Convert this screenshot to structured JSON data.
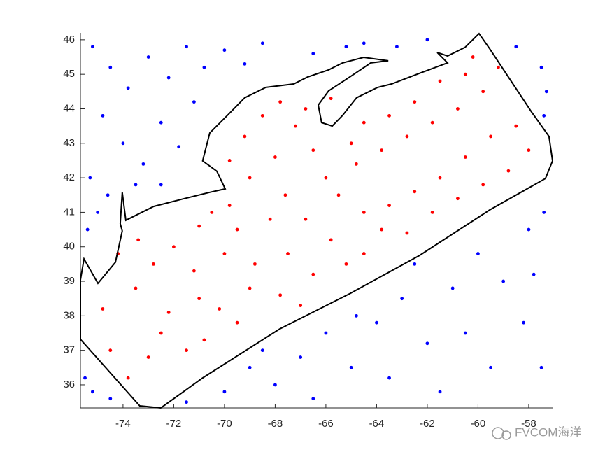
{
  "chart_data": {
    "type": "scatter",
    "xlim": [
      -75.68,
      -57.06
    ],
    "ylim": [
      35.33,
      46.2
    ],
    "xticks": [
      -74,
      -72,
      -70,
      -68,
      -66,
      -64,
      -62,
      -60,
      -58
    ],
    "yticks": [
      36,
      37,
      38,
      39,
      40,
      41,
      42,
      43,
      44,
      45,
      46
    ],
    "series": [
      {
        "color": "#ff0000",
        "x": [
          -74.5,
          -73.8,
          -73.0,
          -72.5,
          -74.8,
          -73.5,
          -72.2,
          -71.5,
          -70.8,
          -71.0,
          -72.8,
          -74.2,
          -73.4,
          -72.0,
          -71.2,
          -70.2,
          -69.5,
          -69.0,
          -70.0,
          -71.0,
          -69.5,
          -68.8,
          -67.8,
          -67.0,
          -66.5,
          -67.5,
          -68.2,
          -69.8,
          -70.5,
          -69.0,
          -69.8,
          -69.2,
          -68.5,
          -67.8,
          -67.2,
          -66.5,
          -68.0,
          -67.6,
          -66.8,
          -65.8,
          -65.2,
          -64.5,
          -63.8,
          -62.8,
          -61.8,
          -60.8,
          -59.8,
          -58.8,
          -58.0,
          -58.5,
          -59.5,
          -60.5,
          -61.5,
          -62.5,
          -63.5,
          -64.5,
          -65.5,
          -66.0,
          -64.8,
          -63.8,
          -62.8,
          -61.8,
          -60.8,
          -59.8,
          -59.2,
          -60.5,
          -61.5,
          -62.5,
          -63.5,
          -64.5,
          -65.0,
          -66.8,
          -65.8,
          -60.2
        ],
        "y": [
          37.0,
          36.2,
          36.8,
          37.5,
          38.2,
          38.8,
          38.1,
          37.0,
          37.3,
          38.5,
          39.5,
          39.8,
          40.2,
          40.0,
          39.3,
          38.2,
          37.8,
          38.8,
          39.8,
          40.6,
          40.5,
          39.5,
          38.6,
          38.3,
          39.2,
          39.8,
          40.8,
          41.2,
          41.0,
          42.0,
          42.5,
          43.2,
          43.8,
          44.2,
          43.5,
          42.8,
          42.6,
          41.5,
          40.8,
          40.2,
          39.5,
          39.8,
          40.5,
          40.4,
          41.0,
          41.4,
          41.8,
          42.2,
          42.8,
          43.5,
          43.2,
          42.6,
          42.0,
          41.6,
          41.2,
          41.0,
          41.5,
          42.0,
          42.4,
          42.8,
          43.2,
          43.6,
          44.0,
          44.5,
          45.2,
          45.0,
          44.8,
          44.2,
          43.8,
          43.6,
          43.0,
          44.0,
          44.3,
          45.5
        ]
      },
      {
        "color": "#0000ff",
        "x": [
          -75.2,
          -74.5,
          -73.8,
          -73.0,
          -72.2,
          -71.5,
          -70.8,
          -70.0,
          -69.2,
          -68.5,
          -74.8,
          -74.0,
          -73.2,
          -72.5,
          -71.8,
          -71.2,
          -75.3,
          -74.6,
          -73.5,
          -72.5,
          -75.4,
          -75.0,
          -64.5,
          -63.2,
          -62.0,
          -58.5,
          -57.5,
          -57.3,
          -57.4,
          -66.5,
          -65.2,
          -75.5,
          -75.2,
          -74.5,
          -71.5,
          -70.0,
          -69.0,
          -68.0,
          -67.0,
          -66.0,
          -65.0,
          -64.0,
          -63.0,
          -62.0,
          -61.0,
          -60.0,
          -59.0,
          -58.0,
          -57.4,
          -58.2,
          -59.5,
          -61.5,
          -63.5,
          -66.5,
          -68.5,
          -57.5,
          -60.5,
          -62.5,
          -64.8,
          -57.8
        ],
        "y": [
          45.8,
          45.2,
          44.6,
          45.5,
          44.9,
          45.8,
          45.2,
          45.7,
          45.3,
          45.9,
          43.8,
          43.0,
          42.4,
          43.6,
          42.9,
          44.2,
          42.0,
          41.5,
          41.8,
          41.8,
          40.5,
          41.0,
          45.9,
          45.8,
          46.0,
          45.8,
          45.2,
          44.5,
          43.8,
          45.6,
          45.8,
          36.2,
          35.8,
          35.6,
          35.5,
          35.8,
          36.5,
          36.0,
          36.8,
          37.5,
          36.5,
          37.8,
          38.5,
          37.2,
          38.8,
          39.8,
          39.0,
          40.5,
          41.0,
          37.8,
          36.5,
          35.8,
          36.2,
          35.6,
          37.0,
          36.5,
          37.5,
          39.5,
          38.0,
          39.2
        ]
      },
      {
        "color": "#000000",
        "line": true,
        "x": [
          -75.68,
          -73.34,
          -72.51,
          -70.86,
          -67.82,
          -65.06,
          -62.3,
          -59.54,
          -57.34,
          -57.06,
          -57.2,
          -57.89,
          -59.54,
          -59.96,
          -60.51,
          -61.2,
          -61.61,
          -61.2,
          -62.3,
          -63.41,
          -63.96,
          -64.79,
          -65.34,
          -65.75,
          -66.17,
          -66.3,
          -65.89,
          -65.06,
          -64.23,
          -63.54,
          -64.51,
          -65.34,
          -65.89,
          -66.72,
          -67.27,
          -68.37,
          -69.2,
          -69.75,
          -70.58,
          -70.86,
          -70.3,
          -69.97,
          -70.58,
          -71.68,
          -72.79,
          -73.89,
          -74.03,
          -74.11,
          -74.03,
          -74.3,
          -74.99,
          -75.54,
          -75.68,
          -75.68
        ],
        "y": [
          37.32,
          35.39,
          35.33,
          36.2,
          37.62,
          38.64,
          39.75,
          41.07,
          41.98,
          42.49,
          43.2,
          43.91,
          45.74,
          46.18,
          45.78,
          45.53,
          45.63,
          45.33,
          45.03,
          44.72,
          44.62,
          44.32,
          43.81,
          43.5,
          43.6,
          44.11,
          44.52,
          44.92,
          45.33,
          45.39,
          45.49,
          45.33,
          45.13,
          44.92,
          44.72,
          44.62,
          44.32,
          43.91,
          43.3,
          42.49,
          42.19,
          41.68,
          41.58,
          41.38,
          41.17,
          40.77,
          41.58,
          40.67,
          40.46,
          39.55,
          38.94,
          39.65,
          39.04,
          37.32
        ]
      }
    ]
  },
  "watermark": "FVCOM海洋"
}
